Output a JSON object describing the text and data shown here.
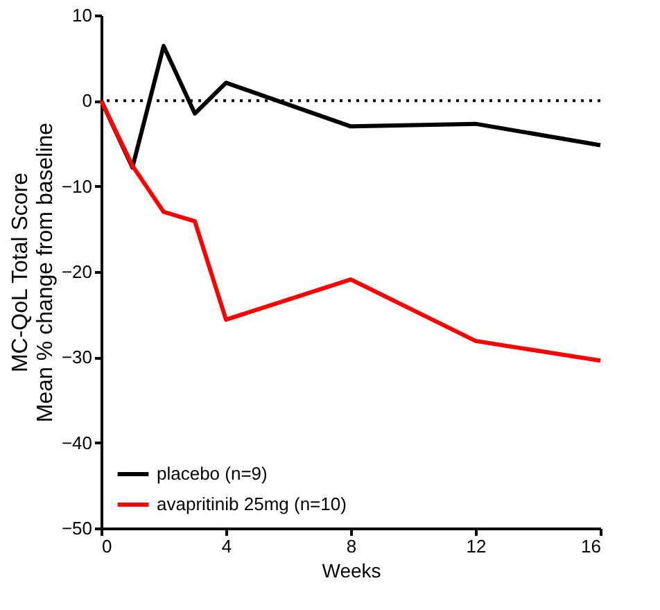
{
  "chart_data": {
    "type": "line",
    "xlabel": "Weeks",
    "ylabel": "MC-QoL Total Score\nMean % change from baseline",
    "x": [
      0,
      1,
      2,
      3,
      4,
      8,
      12,
      16
    ],
    "series": [
      {
        "name": "placebo (n=9)",
        "color": "#000000",
        "values": [
          0,
          -7.8,
          6.4,
          -1.5,
          2.1,
          -3.0,
          -2.7,
          -5.2
        ]
      },
      {
        "name": "avapritinib 25mg (n=10)",
        "color": "#ff0000",
        "values": [
          0,
          -7.6,
          -13.0,
          -14.1,
          -25.6,
          -20.9,
          -28.1,
          -30.4
        ]
      }
    ],
    "xlim": [
      0,
      16
    ],
    "xticks": [
      0,
      4,
      8,
      12,
      16
    ],
    "ylim": [
      -50,
      10
    ],
    "yticks": [
      -50,
      -40,
      -30,
      -20,
      -10,
      0,
      10
    ],
    "ref_lines": [
      {
        "axis": "y",
        "value": 0,
        "color": "#000000",
        "line_style": "dotted"
      }
    ],
    "grid": false,
    "legend": "bottom left",
    "marker": "none",
    "line_style": "solid"
  }
}
